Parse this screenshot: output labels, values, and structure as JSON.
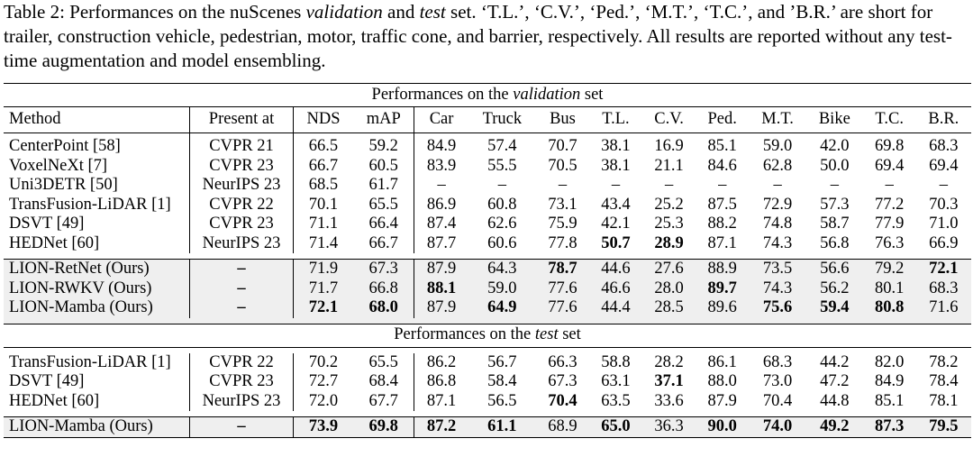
{
  "caption": {
    "prefix": "Table 2: Performances on the nuScenes ",
    "validation_word": "validation",
    "and_word": " and ",
    "test_word": "test",
    "suffix": " set. ‘T.L.’, ‘C.V.’, ‘Ped.’, ‘M.T.’, ‘T.C.’, and ’B.R.’ are short for trailer, construction vehicle, pedestrian, motor, traffic cone, and barrier, respectively. All results are reported without any test-time augmentation and model ensembling."
  },
  "validation_title": {
    "prefix": "Performances on the ",
    "italic": "validation",
    "suffix": " set"
  },
  "test_title": {
    "prefix": "Performances on the ",
    "italic": "test",
    "suffix": " set"
  },
  "columns": [
    "Method",
    "Present at",
    "NDS",
    "mAP",
    "Car",
    "Truck",
    "Bus",
    "T.L.",
    "C.V.",
    "Ped.",
    "M.T.",
    "Bike",
    "T.C.",
    "B.R."
  ],
  "validation_rows": [
    [
      "CenterPoint [58]",
      "CVPR 21",
      "66.5",
      "59.2",
      "84.9",
      "57.4",
      "70.7",
      "38.1",
      "16.9",
      "85.1",
      "59.0",
      "42.0",
      "69.8",
      "68.3"
    ],
    [
      "VoxelNeXt [7]",
      "CVPR 23",
      "66.7",
      "60.5",
      "83.9",
      "55.5",
      "70.5",
      "38.1",
      "21.1",
      "84.6",
      "62.8",
      "50.0",
      "69.4",
      "69.4"
    ],
    [
      "Uni3DETR [50]",
      "NeurIPS 23",
      "68.5",
      "61.7",
      "–",
      "–",
      "–",
      "–",
      "–",
      "–",
      "–",
      "–",
      "–",
      "–"
    ],
    [
      "TransFusion-LiDAR [1]",
      "CVPR 22",
      "70.1",
      "65.5",
      "86.9",
      "60.8",
      "73.1",
      "43.4",
      "25.2",
      "87.5",
      "72.9",
      "57.3",
      "77.2",
      "70.3"
    ],
    [
      "DSVT [49]",
      "CVPR 23",
      "71.1",
      "66.4",
      "87.4",
      "62.6",
      "75.9",
      "42.1",
      "25.3",
      "88.2",
      "74.8",
      "58.7",
      "77.9",
      "71.0"
    ],
    [
      "HEDNet [60]",
      "NeurIPS 23",
      "71.4",
      "66.7",
      "87.7",
      "60.6",
      "77.8",
      "50.7",
      "28.9",
      "87.1",
      "74.3",
      "56.8",
      "76.3",
      "66.9"
    ]
  ],
  "validation_bold": [
    [],
    [],
    [],
    [],
    [],
    [
      7,
      8
    ]
  ],
  "validation_ours": [
    [
      "LION-RetNet (Ours)",
      "–",
      "71.9",
      "67.3",
      "87.9",
      "64.3",
      "78.7",
      "44.6",
      "27.6",
      "88.9",
      "73.5",
      "56.6",
      "79.2",
      "72.1"
    ],
    [
      "LION-RWKV (Ours)",
      "–",
      "71.7",
      "66.8",
      "88.1",
      "59.0",
      "77.6",
      "46.6",
      "28.0",
      "89.7",
      "74.3",
      "56.2",
      "80.1",
      "68.3"
    ],
    [
      "LION-Mamba (Ours)",
      "–",
      "72.1",
      "68.0",
      "87.9",
      "64.9",
      "77.6",
      "44.4",
      "28.5",
      "89.6",
      "75.6",
      "59.4",
      "80.8",
      "71.6"
    ]
  ],
  "validation_ours_bold": [
    [
      1,
      6,
      13
    ],
    [
      1,
      4,
      9
    ],
    [
      1,
      2,
      3,
      5,
      10,
      11,
      12
    ]
  ],
  "test_rows": [
    [
      "TransFusion-LiDAR [1]",
      "CVPR 22",
      "70.2",
      "65.5",
      "86.2",
      "56.7",
      "66.3",
      "58.8",
      "28.2",
      "86.1",
      "68.3",
      "44.2",
      "82.0",
      "78.2"
    ],
    [
      "DSVT [49]",
      "CVPR 23",
      "72.7",
      "68.4",
      "86.8",
      "58.4",
      "67.3",
      "63.1",
      "37.1",
      "88.0",
      "73.0",
      "47.2",
      "84.9",
      "78.4"
    ],
    [
      "HEDNet [60]",
      "NeurIPS 23",
      "72.0",
      "67.7",
      "87.1",
      "56.5",
      "70.4",
      "63.5",
      "33.6",
      "87.9",
      "70.4",
      "44.8",
      "85.1",
      "78.1"
    ]
  ],
  "test_bold": [
    [],
    [
      8
    ],
    [
      6
    ]
  ],
  "test_ours": [
    [
      "LION-Mamba (Ours)",
      "–",
      "73.9",
      "69.8",
      "87.2",
      "61.1",
      "68.9",
      "65.0",
      "36.3",
      "90.0",
      "74.0",
      "49.2",
      "87.3",
      "79.5"
    ]
  ],
  "test_ours_bold": [
    [
      1,
      2,
      3,
      4,
      5,
      7,
      9,
      10,
      11,
      12,
      13
    ]
  ],
  "colors": {
    "shade": "#efefef",
    "rule": "#000000"
  }
}
